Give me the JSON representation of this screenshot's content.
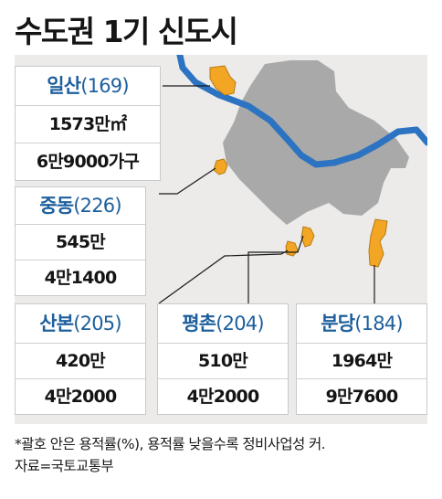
{
  "title": "수도권 1기 신도시",
  "cities": [
    {
      "name": "일산",
      "count": "(169)",
      "area": "1573만㎡",
      "households": "6만9000가구"
    },
    {
      "name": "중동",
      "count": "(226)",
      "area": "545만",
      "households": "4만1400"
    },
    {
      "name": "산본",
      "count": "(205)",
      "area": "420만",
      "households": "4만2000"
    },
    {
      "name": "평촌",
      "count": "(204)",
      "area": "510만",
      "households": "4만2000"
    },
    {
      "name": "분당",
      "count": "(184)",
      "area": "1964만",
      "households": "9만7600"
    }
  ],
  "footnote": "*괄호 안은 용적률(%), 용적률 낮을수록 정비사업성 커.",
  "source": "자료=국토교통부",
  "colors": {
    "seoul": "#a9a9a9",
    "river": "#2c73c2",
    "new_town": "#f2a623",
    "heading": "#1d5f9c",
    "panel": "#ecebea"
  }
}
